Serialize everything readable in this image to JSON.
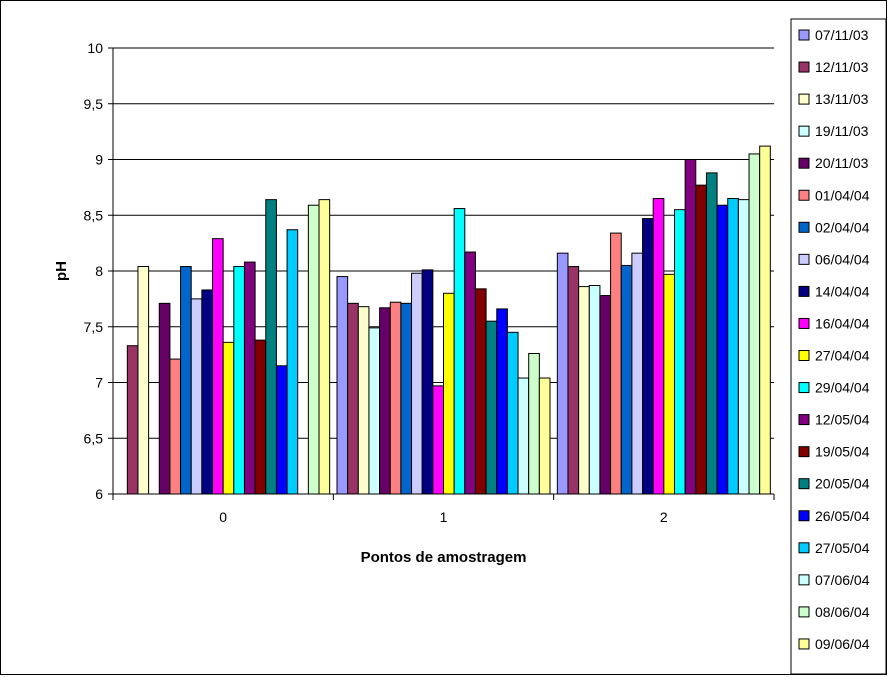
{
  "chart_data": {
    "type": "bar",
    "xlabel": "Pontos de amostragem",
    "ylabel": "pH",
    "ylim": [
      6,
      10
    ],
    "ytick_step": 0.5,
    "grid": "horizontal",
    "legend_position": "right",
    "categories": [
      "0",
      "1",
      "2"
    ],
    "series": [
      {
        "name": "07/11/03",
        "color": "#9999ff",
        "values": [
          null,
          7.95,
          8.16
        ]
      },
      {
        "name": "12/11/03",
        "color": "#993366",
        "values": [
          7.33,
          7.71,
          8.04
        ]
      },
      {
        "name": "13/11/03",
        "color": "#ffffcc",
        "values": [
          8.04,
          7.68,
          7.86
        ]
      },
      {
        "name": "19/11/03",
        "color": "#ccffff",
        "values": [
          null,
          7.49,
          7.87
        ]
      },
      {
        "name": "20/11/03",
        "color": "#660066",
        "values": [
          7.71,
          7.67,
          7.78
        ]
      },
      {
        "name": "01/04/04",
        "color": "#ff8080",
        "values": [
          7.21,
          7.72,
          8.34
        ]
      },
      {
        "name": "02/04/04",
        "color": "#0066cc",
        "values": [
          8.04,
          7.71,
          8.05
        ]
      },
      {
        "name": "06/04/04",
        "color": "#ccccff",
        "values": [
          7.75,
          7.98,
          8.16
        ]
      },
      {
        "name": "14/04/04",
        "color": "#000080",
        "values": [
          7.83,
          8.01,
          8.47
        ]
      },
      {
        "name": "16/04/04",
        "color": "#ff00ff",
        "values": [
          8.29,
          6.97,
          8.65
        ]
      },
      {
        "name": "27/04/04",
        "color": "#ffff00",
        "values": [
          7.36,
          7.8,
          7.97
        ]
      },
      {
        "name": "29/04/04",
        "color": "#00ffff",
        "values": [
          8.04,
          8.56,
          8.55
        ]
      },
      {
        "name": "12/05/04",
        "color": "#800080",
        "values": [
          8.08,
          8.17,
          9.0
        ]
      },
      {
        "name": "19/05/04",
        "color": "#800000",
        "values": [
          7.38,
          7.84,
          8.77
        ]
      },
      {
        "name": "20/05/04",
        "color": "#008080",
        "values": [
          8.64,
          7.55,
          8.88
        ]
      },
      {
        "name": "26/05/04",
        "color": "#0000ff",
        "values": [
          7.15,
          7.66,
          8.59
        ]
      },
      {
        "name": "27/05/04",
        "color": "#00ccff",
        "values": [
          8.37,
          7.45,
          8.65
        ]
      },
      {
        "name": "07/06/04",
        "color": "#ccffff",
        "values": [
          null,
          7.04,
          8.64
        ]
      },
      {
        "name": "08/06/04",
        "color": "#ccffcc",
        "values": [
          8.59,
          7.26,
          9.05
        ]
      },
      {
        "name": "09/06/04",
        "color": "#ffff99",
        "values": [
          8.64,
          7.04,
          9.12
        ]
      }
    ]
  }
}
